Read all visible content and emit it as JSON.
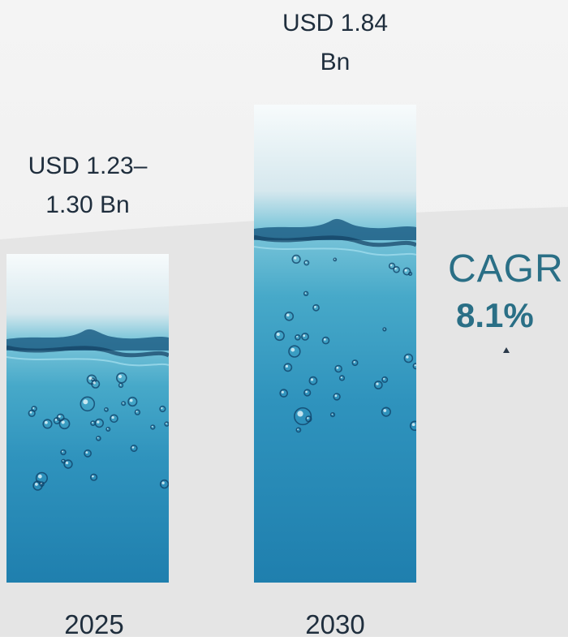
{
  "chart_data": {
    "type": "bar",
    "categories": [
      "2025",
      "2030"
    ],
    "values": [
      1.265,
      1.84
    ],
    "value_labels": [
      "USD 1.23–1.30 Bn",
      "USD 1.84 Bn"
    ],
    "value_label_lines": [
      [
        "USD 1.23–",
        "1.30 Bn"
      ],
      [
        "USD 1.84",
        "Bn"
      ]
    ],
    "unit": "USD Bn",
    "annotation": {
      "title": "CAGR",
      "value": "8.1%"
    },
    "title": "",
    "xlabel": "",
    "ylabel": "",
    "grid": false,
    "colors": {
      "water_top": "#7cc6da",
      "water_bottom": "#1f7fae",
      "cagr": "#2a6f86",
      "text": "#1f2e3d"
    }
  }
}
